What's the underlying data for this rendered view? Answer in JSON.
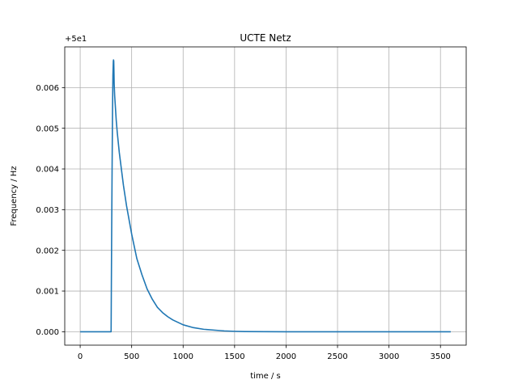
{
  "chart_data": {
    "type": "line",
    "title": "UCTE Netz",
    "xlabel": "time / s",
    "ylabel": "Frequency / Hz",
    "y_offset_label": "+5e1",
    "xlim": [
      -150,
      3750
    ],
    "ylim": [
      -0.00033,
      0.007
    ],
    "xticks": [
      0,
      500,
      1000,
      1500,
      2000,
      2500,
      3000,
      3500
    ],
    "yticks": [
      0.0,
      0.001,
      0.002,
      0.003,
      0.004,
      0.005,
      0.006
    ],
    "ytick_labels": [
      "0.000",
      "0.001",
      "0.002",
      "0.003",
      "0.004",
      "0.005",
      "0.006"
    ],
    "grid": true,
    "line_color": "#1f77b4",
    "series": [
      {
        "x": [
          0,
          100,
          200,
          300,
          300.5,
          303,
          306,
          310,
          314,
          318,
          322,
          324,
          326,
          328,
          330,
          335,
          340,
          350,
          360,
          380,
          400,
          420,
          450,
          500,
          550,
          600,
          650,
          700,
          750,
          800,
          850,
          900,
          1000,
          1100,
          1200,
          1300,
          1400,
          1500,
          1600,
          1800,
          2000,
          2500,
          3000,
          3600
        ],
        "y": [
          0,
          0,
          0,
          0,
          5e-05,
          0.0012,
          0.0025,
          0.004,
          0.0054,
          0.0063,
          0.00665,
          0.00668,
          0.00665,
          0.0064,
          0.0061,
          0.0058,
          0.0056,
          0.0052,
          0.0049,
          0.0044,
          0.004,
          0.0036,
          0.0031,
          0.0024,
          0.0018,
          0.0014,
          0.00105,
          0.0008,
          0.0006,
          0.00047,
          0.00037,
          0.00029,
          0.00017,
          0.0001,
          6e-05,
          4e-05,
          2e-05,
          1e-05,
          5e-06,
          2e-06,
          0,
          0,
          0,
          0
        ]
      }
    ]
  }
}
